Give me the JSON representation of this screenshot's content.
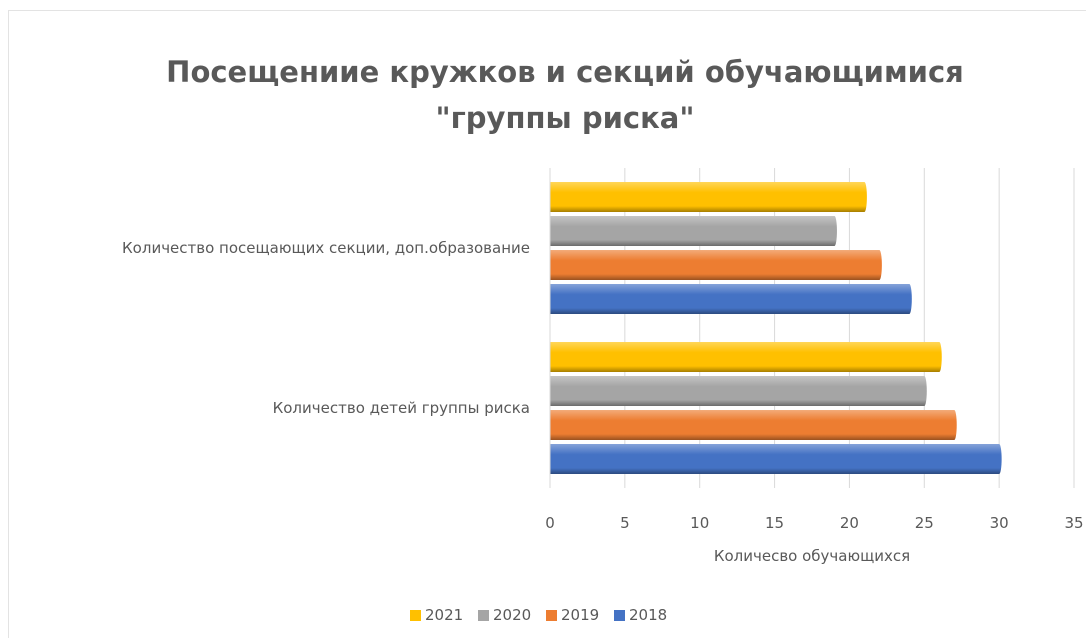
{
  "chart_data": {
    "type": "bar",
    "orientation": "horizontal",
    "title_line1": "Посещениие кружков и секций обучающимися",
    "title_line2": "\"группы риска\"",
    "xlabel": "Количесво обучающихся",
    "ylabel": "",
    "xlim": [
      0,
      35
    ],
    "x_ticks": [
      "0",
      "5",
      "10",
      "15",
      "20",
      "25",
      "30",
      "35"
    ],
    "categories": [
      "Количество посещающих секции, доп.образование",
      "Количество детей группы риска"
    ],
    "series": [
      {
        "name": "2021",
        "color": "#ffc000",
        "values": [
          21,
          26
        ]
      },
      {
        "name": "2020",
        "color": "#a5a5a5",
        "values": [
          19,
          25
        ]
      },
      {
        "name": "2019",
        "color": "#ed7d31",
        "values": [
          22,
          27
        ]
      },
      {
        "name": "2018",
        "color": "#4472c4",
        "values": [
          24,
          30
        ]
      }
    ],
    "grid": true,
    "legend_position": "bottom"
  }
}
